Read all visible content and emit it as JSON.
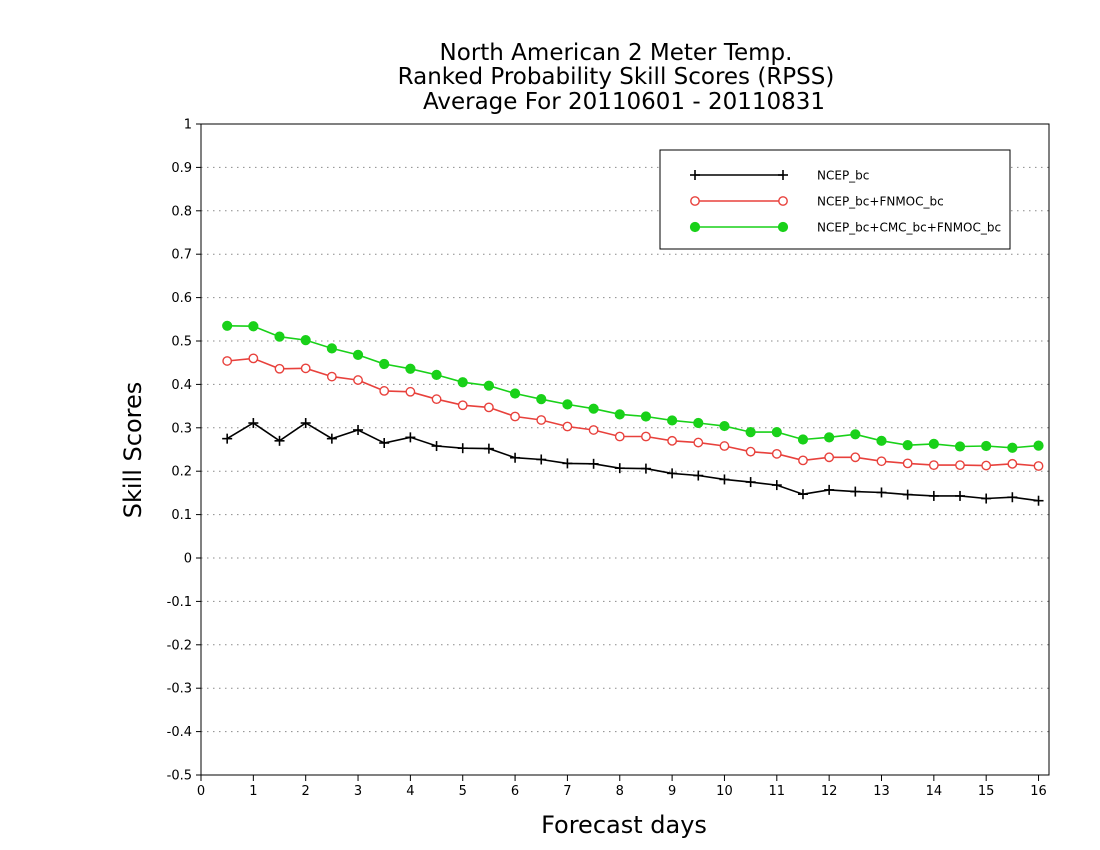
{
  "chart_data": {
    "type": "line",
    "title": [
      "North American 2 Meter Temp.",
      "Ranked Probability Skill Scores (RPSS)",
      "Average For 20110601 - 20110831"
    ],
    "xlabel": "Forecast days",
    "ylabel": "Skill Scores",
    "xlim": [
      0,
      16.2
    ],
    "ylim": [
      -0.5,
      1
    ],
    "xticks": [
      0,
      1,
      2,
      3,
      4,
      5,
      6,
      7,
      8,
      9,
      10,
      11,
      12,
      13,
      14,
      15,
      16
    ],
    "xtick_labels": [
      "0",
      "1",
      "2",
      "3",
      "4",
      "5",
      "6",
      "7",
      "8",
      "9",
      "10",
      "11",
      "12",
      "13",
      "14",
      "15",
      "16"
    ],
    "yticks": [
      -0.5,
      -0.4,
      -0.3,
      -0.2,
      -0.1,
      0,
      0.1,
      0.2,
      0.3,
      0.4,
      0.5,
      0.6,
      0.7,
      0.8,
      0.9,
      1
    ],
    "ytick_labels": [
      "-0.5",
      "-0.4",
      "-0.3",
      "-0.2",
      "-0.1",
      "0",
      "0.1",
      "0.2",
      "0.3",
      "0.4",
      "0.5",
      "0.6",
      "0.7",
      "0.8",
      "0.9",
      "1"
    ],
    "grid": true,
    "legend_position": "top-right",
    "x": [
      0.5,
      1,
      1.5,
      2,
      2.5,
      3,
      3.5,
      4,
      4.5,
      5,
      5.5,
      6,
      6.5,
      7,
      7.5,
      8,
      8.5,
      9,
      9.5,
      10,
      10.5,
      11,
      11.5,
      12,
      12.5,
      13,
      13.5,
      14,
      14.5,
      15,
      15.5,
      16
    ],
    "series": [
      {
        "name": "NCEP_bc",
        "color": "#000000",
        "marker": "plus",
        "values": [
          0.275,
          0.311,
          0.27,
          0.311,
          0.275,
          0.295,
          0.265,
          0.278,
          0.258,
          0.253,
          0.252,
          0.231,
          0.227,
          0.218,
          0.217,
          0.207,
          0.206,
          0.195,
          0.19,
          0.181,
          0.175,
          0.168,
          0.147,
          0.157,
          0.153,
          0.151,
          0.146,
          0.143,
          0.143,
          0.137,
          0.14,
          0.132
        ]
      },
      {
        "name": "NCEP_bc+FNMOC_bc",
        "color": "#e8413c",
        "marker": "open-circle",
        "values": [
          0.454,
          0.46,
          0.436,
          0.437,
          0.418,
          0.41,
          0.385,
          0.383,
          0.366,
          0.352,
          0.347,
          0.326,
          0.318,
          0.303,
          0.295,
          0.28,
          0.28,
          0.27,
          0.266,
          0.258,
          0.245,
          0.24,
          0.225,
          0.232,
          0.232,
          0.223,
          0.218,
          0.214,
          0.214,
          0.213,
          0.217,
          0.212
        ]
      },
      {
        "name": "NCEP_bc+CMC_bc+FNMOC_bc",
        "color": "#19d119",
        "marker": "filled-circle",
        "values": [
          0.535,
          0.534,
          0.51,
          0.502,
          0.483,
          0.468,
          0.447,
          0.436,
          0.422,
          0.405,
          0.397,
          0.379,
          0.366,
          0.354,
          0.344,
          0.331,
          0.326,
          0.317,
          0.311,
          0.304,
          0.29,
          0.29,
          0.273,
          0.278,
          0.285,
          0.27,
          0.26,
          0.263,
          0.257,
          0.258,
          0.254,
          0.259
        ]
      }
    ]
  }
}
